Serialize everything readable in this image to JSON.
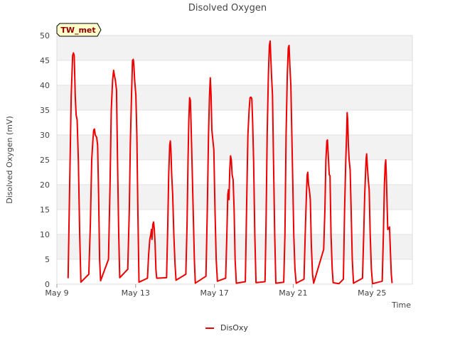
{
  "chart_data": {
    "type": "line",
    "title": "Disolved Oxygen",
    "xlabel": "Time",
    "ylabel": "Disolved Oxygen (mV)",
    "badge": "TW_met",
    "legend": [
      {
        "name": "DisOxy",
        "color": "#ee0000"
      }
    ],
    "ylim": [
      0,
      50
    ],
    "y_ticks": [
      "0",
      "5",
      "10",
      "15",
      "20",
      "25",
      "30",
      "35",
      "40",
      "45",
      "50"
    ],
    "xlim": [
      0,
      18.05
    ],
    "x_ticks": [
      {
        "value": 0,
        "label": "May 9"
      },
      {
        "value": 4,
        "label": "May 13"
      },
      {
        "value": 8,
        "label": "May 17"
      },
      {
        "value": 12,
        "label": "May 21"
      },
      {
        "value": 16,
        "label": "May 25"
      }
    ],
    "series": [
      {
        "name": "DisOxy",
        "color": "#ee0000",
        "points": [
          [
            0.57,
            1.2
          ],
          [
            0.65,
            20
          ],
          [
            0.73,
            38
          ],
          [
            0.8,
            46
          ],
          [
            0.84,
            46.5
          ],
          [
            0.88,
            46
          ],
          [
            0.93,
            38
          ],
          [
            0.98,
            34
          ],
          [
            1.03,
            33
          ],
          [
            1.09,
            25
          ],
          [
            1.16,
            10
          ],
          [
            1.22,
            0.4
          ],
          [
            1.62,
            2
          ],
          [
            1.7,
            12
          ],
          [
            1.77,
            25
          ],
          [
            1.83,
            29
          ],
          [
            1.87,
            31
          ],
          [
            1.91,
            31.2
          ],
          [
            1.95,
            30
          ],
          [
            2.02,
            29.5
          ],
          [
            2.07,
            28
          ],
          [
            2.12,
            18
          ],
          [
            2.17,
            5
          ],
          [
            2.22,
            0.7
          ],
          [
            2.62,
            5
          ],
          [
            2.7,
            20
          ],
          [
            2.76,
            35
          ],
          [
            2.83,
            41
          ],
          [
            2.88,
            43
          ],
          [
            2.92,
            42
          ],
          [
            2.97,
            41
          ],
          [
            3.03,
            39
          ],
          [
            3.08,
            25
          ],
          [
            3.14,
            10
          ],
          [
            3.19,
            1.3
          ],
          [
            3.6,
            3
          ],
          [
            3.68,
            15
          ],
          [
            3.73,
            28
          ],
          [
            3.79,
            38
          ],
          [
            3.84,
            45
          ],
          [
            3.88,
            45.2
          ],
          [
            3.91,
            44
          ],
          [
            3.95,
            41
          ],
          [
            4.01,
            38
          ],
          [
            4.06,
            30
          ],
          [
            4.11,
            15
          ],
          [
            4.17,
            0.4
          ],
          [
            4.6,
            1.2
          ],
          [
            4.66,
            6
          ],
          [
            4.72,
            9
          ],
          [
            4.77,
            10
          ],
          [
            4.8,
            11
          ],
          [
            4.83,
            9
          ],
          [
            4.87,
            12
          ],
          [
            4.91,
            12.5
          ],
          [
            4.95,
            11
          ],
          [
            4.99,
            8
          ],
          [
            5.03,
            3
          ],
          [
            5.07,
            1.2
          ],
          [
            5.57,
            1.3
          ],
          [
            5.63,
            12
          ],
          [
            5.68,
            22
          ],
          [
            5.73,
            28
          ],
          [
            5.76,
            28.8
          ],
          [
            5.79,
            27
          ],
          [
            5.83,
            22
          ],
          [
            5.88,
            18
          ],
          [
            5.94,
            10
          ],
          [
            6.0,
            4
          ],
          [
            6.05,
            0.8
          ],
          [
            6.55,
            2
          ],
          [
            6.61,
            12
          ],
          [
            6.66,
            25
          ],
          [
            6.7,
            33
          ],
          [
            6.74,
            37.5
          ],
          [
            6.78,
            37
          ],
          [
            6.81,
            33
          ],
          [
            6.86,
            25
          ],
          [
            6.92,
            15
          ],
          [
            6.98,
            5
          ],
          [
            7.03,
            0.2
          ],
          [
            7.57,
            1.6
          ],
          [
            7.64,
            15
          ],
          [
            7.7,
            30
          ],
          [
            7.75,
            38
          ],
          [
            7.79,
            41.5
          ],
          [
            7.83,
            38
          ],
          [
            7.87,
            31
          ],
          [
            7.92,
            29
          ],
          [
            7.97,
            27
          ],
          [
            8.03,
            15
          ],
          [
            8.09,
            5
          ],
          [
            8.15,
            0.6
          ],
          [
            8.57,
            1.2
          ],
          [
            8.63,
            10
          ],
          [
            8.68,
            18
          ],
          [
            8.71,
            19
          ],
          [
            8.74,
            17
          ],
          [
            8.78,
            23
          ],
          [
            8.82,
            25.8
          ],
          [
            8.86,
            25
          ],
          [
            8.9,
            22
          ],
          [
            8.95,
            21
          ],
          [
            9.0,
            15
          ],
          [
            9.05,
            5
          ],
          [
            9.11,
            0.2
          ],
          [
            9.57,
            0.5
          ],
          [
            9.63,
            15
          ],
          [
            9.7,
            30
          ],
          [
            9.76,
            35
          ],
          [
            9.81,
            37.5
          ],
          [
            9.86,
            37.6
          ],
          [
            9.9,
            37.3
          ],
          [
            9.94,
            33
          ],
          [
            9.99,
            25
          ],
          [
            10.05,
            10
          ],
          [
            10.11,
            0.3
          ],
          [
            10.57,
            0.5
          ],
          [
            10.62,
            12
          ],
          [
            10.68,
            30
          ],
          [
            10.74,
            42
          ],
          [
            10.79,
            48
          ],
          [
            10.83,
            48.9
          ],
          [
            10.86,
            46
          ],
          [
            10.9,
            42
          ],
          [
            10.95,
            38
          ],
          [
            11.0,
            25
          ],
          [
            11.06,
            10
          ],
          [
            11.12,
            0.2
          ],
          [
            11.52,
            0.4
          ],
          [
            11.58,
            10
          ],
          [
            11.64,
            30
          ],
          [
            11.7,
            42
          ],
          [
            11.75,
            47.5
          ],
          [
            11.79,
            48
          ],
          [
            11.83,
            44
          ],
          [
            11.88,
            40
          ],
          [
            11.93,
            30
          ],
          [
            11.98,
            20
          ],
          [
            12.03,
            10
          ],
          [
            12.09,
            3
          ],
          [
            12.15,
            0.2
          ],
          [
            12.55,
            1
          ],
          [
            12.61,
            10
          ],
          [
            12.67,
            18
          ],
          [
            12.71,
            22
          ],
          [
            12.74,
            22.5
          ],
          [
            12.78,
            20
          ],
          [
            12.82,
            19
          ],
          [
            12.87,
            17
          ],
          [
            12.92,
            8
          ],
          [
            12.98,
            2
          ],
          [
            13.04,
            0.2
          ],
          [
            13.55,
            7
          ],
          [
            13.61,
            15
          ],
          [
            13.66,
            25
          ],
          [
            13.71,
            28.8
          ],
          [
            13.74,
            29
          ],
          [
            13.78,
            26
          ],
          [
            13.83,
            22
          ],
          [
            13.87,
            21.8
          ],
          [
            13.92,
            10
          ],
          [
            13.98,
            3
          ],
          [
            14.03,
            0.3
          ],
          [
            14.32,
            0.1
          ],
          [
            14.55,
            1
          ],
          [
            14.61,
            15
          ],
          [
            14.67,
            25
          ],
          [
            14.71,
            30
          ],
          [
            14.74,
            34.5
          ],
          [
            14.77,
            33
          ],
          [
            14.8,
            28
          ],
          [
            14.84,
            25
          ],
          [
            14.89,
            23
          ],
          [
            14.94,
            15
          ],
          [
            15.0,
            5
          ],
          [
            15.06,
            0.2
          ],
          [
            15.52,
            1.2
          ],
          [
            15.58,
            10
          ],
          [
            15.63,
            18
          ],
          [
            15.67,
            22
          ],
          [
            15.7,
            25
          ],
          [
            15.73,
            26.2
          ],
          [
            15.76,
            24
          ],
          [
            15.81,
            21
          ],
          [
            15.86,
            19
          ],
          [
            15.91,
            10
          ],
          [
            15.97,
            3
          ],
          [
            16.03,
            0.1
          ],
          [
            16.52,
            0.6
          ],
          [
            16.58,
            10
          ],
          [
            16.63,
            20
          ],
          [
            16.67,
            24
          ],
          [
            16.7,
            25
          ],
          [
            16.73,
            22
          ],
          [
            16.76,
            17
          ],
          [
            16.8,
            11
          ],
          [
            16.85,
            11.2
          ],
          [
            16.89,
            11.5
          ],
          [
            16.94,
            6
          ],
          [
            16.98,
            2
          ],
          [
            17.02,
            0.2
          ]
        ]
      }
    ]
  }
}
